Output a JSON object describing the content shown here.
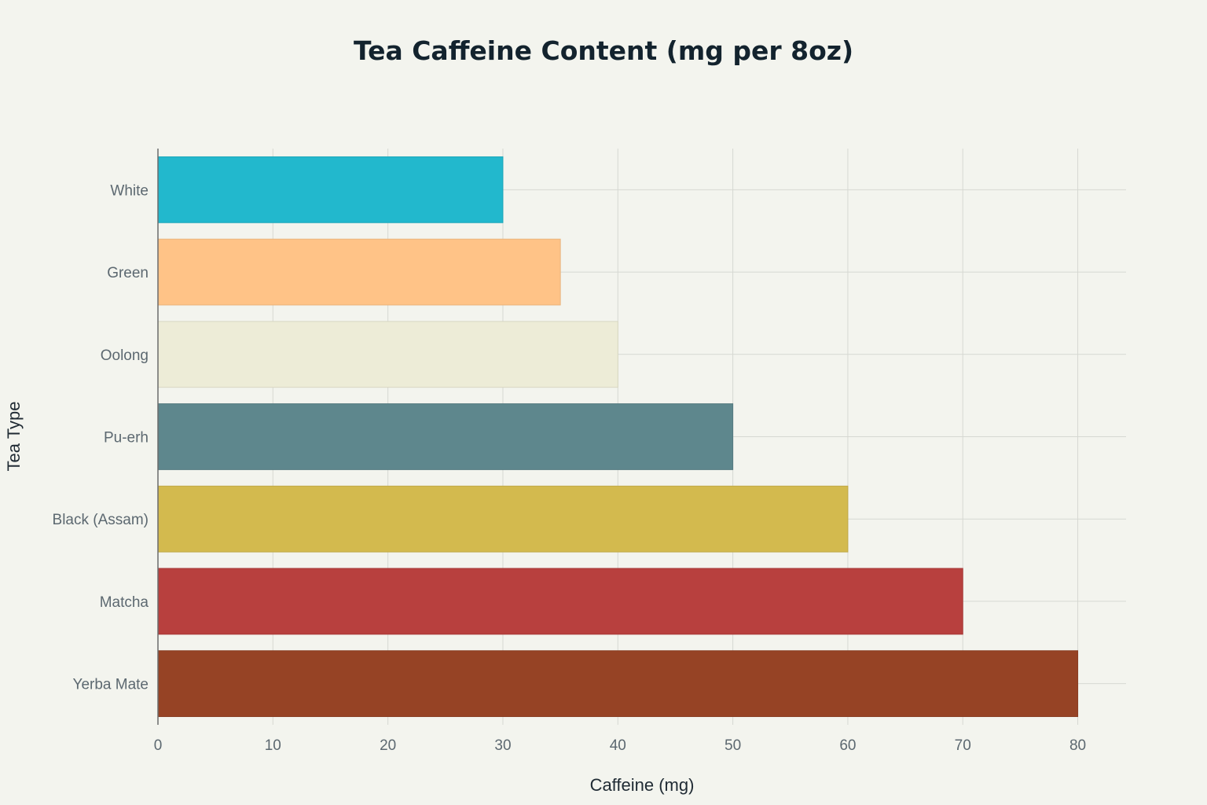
{
  "chart_data": {
    "type": "bar",
    "orientation": "horizontal",
    "title": "Tea Caffeine Content (mg per 8oz)",
    "xlabel": "Caffeine (mg)",
    "ylabel": "Tea Type",
    "categories": [
      "White",
      "Green",
      "Oolong",
      "Pu-erh",
      "Black (Assam)",
      "Matcha",
      "Yerba Mate"
    ],
    "values": [
      30,
      35,
      40,
      50,
      60,
      70,
      80
    ],
    "colors": [
      "#22b8cd",
      "#ffc387",
      "#edecd7",
      "#5e878d",
      "#d3ba4e",
      "#b8403e",
      "#964325"
    ],
    "bar_edge_colors": [
      "#1ea7ba",
      "#e9b37c",
      "#d8d7c2",
      "#557a80",
      "#c0a947",
      "#a73a38",
      "#883d22"
    ],
    "xticks": [
      0,
      10,
      20,
      30,
      40,
      50,
      60,
      70,
      80
    ],
    "xlim": [
      0,
      84.2
    ],
    "grid": true,
    "legend": "none"
  }
}
